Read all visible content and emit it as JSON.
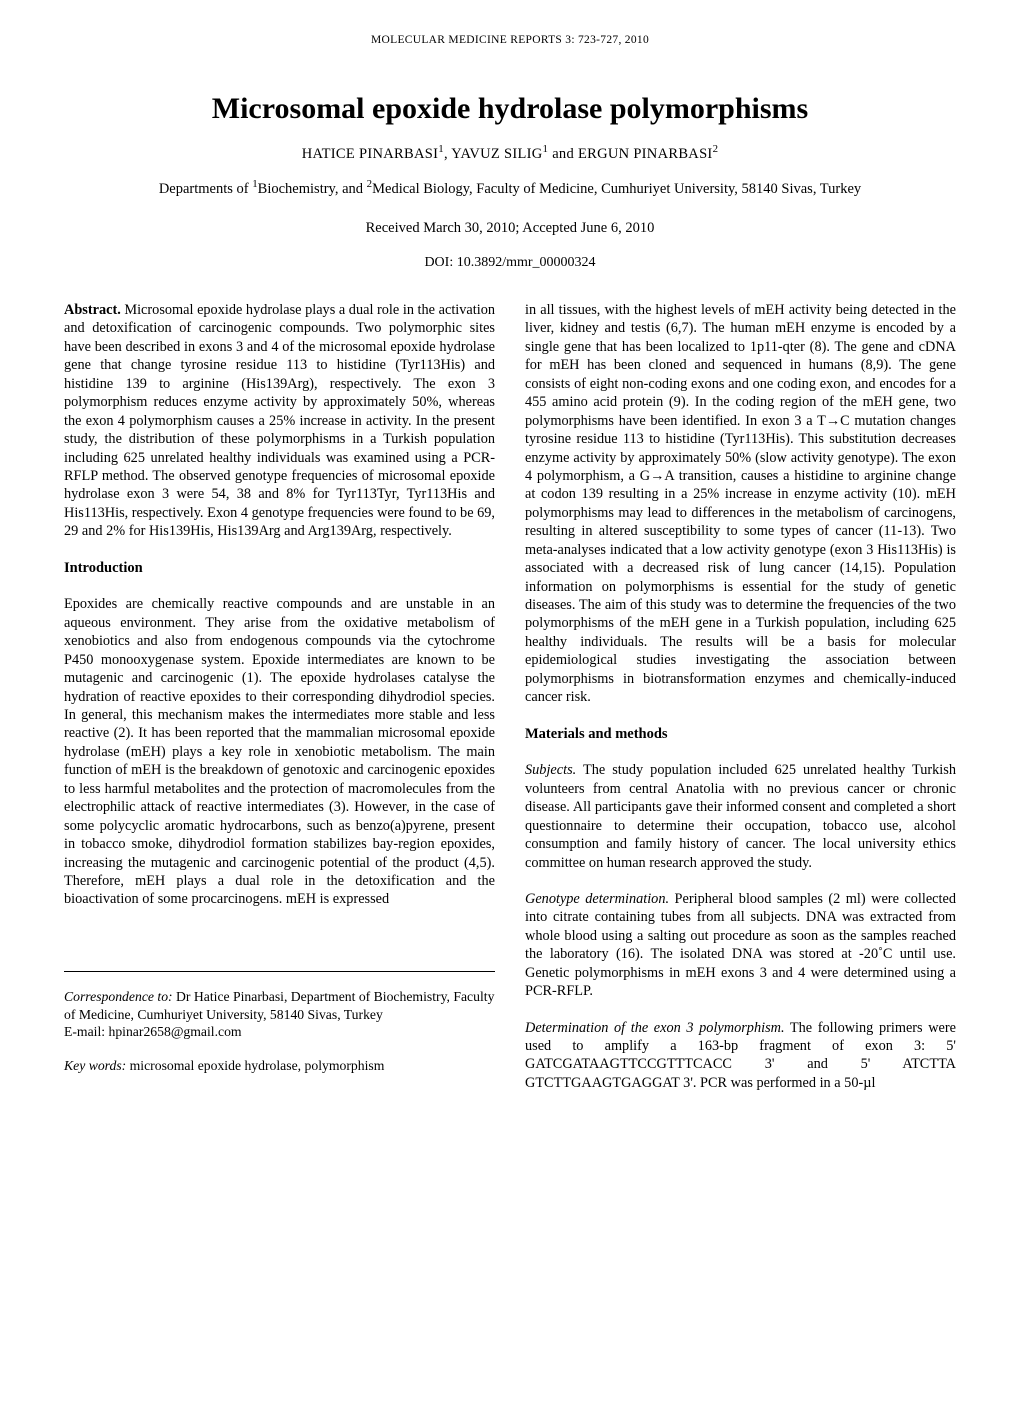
{
  "runningHeader": "MOLECULAR MEDICINE REPORTS  3:  723-727,  2010",
  "title": "Microsomal epoxide hydrolase polymorphisms",
  "authors_html": "HATICE PINARBASI<sup>1</sup>,  YAVUZ SILIG<sup>1</sup>  and  ERGUN PINARBASI<sup>2</sup>",
  "affiliation_html": "Departments of <sup>1</sup>Biochemistry, and <sup>2</sup>Medical Biology, Faculty of Medicine, Cumhuriyet University, 58140 Sivas, Turkey",
  "received": "Received March 30, 2010;  Accepted June 6, 2010",
  "doi": "DOI: 10.3892/mmr_00000324",
  "abstractLabel": "Abstract.",
  "abstractText": " Microsomal epoxide hydrolase plays a dual role in the activation and detoxification of carcinogenic compounds. Two polymorphic sites have been described in exons 3 and 4 of the microsomal epoxide hydrolase gene that change tyrosine residue 113 to histidine (Tyr113His) and histidine 139 to arginine (His139Arg), respectively. The exon 3 polymorphism reduces enzyme activity by approximately 50%, whereas the exon 4 polymorphism causes a 25% increase in activity. In the present study, the distribution of these polymorphisms in a Turkish population including 625 unrelated healthy individuals was examined using a PCR-RFLP method. The observed genotype frequencies of microsomal epoxide hydrolase exon 3 were 54, 38 and 8% for Tyr113Tyr, Tyr113His and His113His, respectively. Exon 4 genotype frequencies were found to be 69, 29 and 2% for His139His, His139Arg and Arg139Arg, respectively.",
  "introHeading": "Introduction",
  "introText": "Epoxides are chemically reactive compounds and are unstable in an aqueous environment. They arise from the oxidative metabolism of xenobiotics and also from endogenous compounds via the cytochrome P450 monooxygenase system. Epoxide intermediates are known to be mutagenic and carcinogenic (1). The epoxide hydrolases catalyse the hydration of reactive epoxides to their corresponding dihydrodiol species. In general, this mechanism makes the intermediates more stable and less reactive (2). It has been reported that the mammalian microsomal epoxide hydrolase (mEH) plays a key role in xenobiotic metabolism. The main function of mEH is the breakdown of genotoxic and carcinogenic epoxides to less harmful metabolites and the protection of macromolecules from the electrophilic attack of reactive intermediates (3). However, in the case of some polycyclic aromatic hydrocarbons, such as benzo(a)pyrene, present in tobacco smoke, dihydrodiol formation stabilizes bay-region epoxides, increasing the mutagenic and carcinogenic potential of the product (4,5). Therefore, mEH plays a dual role in the detoxification and the bioactivation of some procarcinogens. mEH is expressed",
  "rightTopText": "in all tissues, with the highest levels of mEH activity being detected in the liver, kidney and testis (6,7). The human mEH enzyme is encoded by a single gene that has been localized to 1p11-qter (8). The gene and cDNA for mEH has been cloned and sequenced in humans (8,9). The gene consists of eight non-coding exons and one coding exon, and encodes for a 455 amino acid protein (9). In the coding region of the mEH gene, two polymorphisms have been identified. In exon 3 a T→C mutation changes tyrosine residue 113 to histidine (Tyr113His). This substitution decreases enzyme activity by approximately 50% (slow activity genotype). The exon 4 polymorphism, a G→A transition, causes a histidine to arginine change at codon 139 resulting in a 25% increase in enzyme activity (10). mEH polymorphisms may lead to differences in the metabolism of carcinogens, resulting in altered susceptibility to some types of cancer (11-13). Two meta-analyses indicated that a low activity genotype (exon 3 His113His) is associated with a decreased risk of lung cancer (14,15). Population information on polymorphisms is essential for the study of genetic diseases. The aim of this study was to determine the frequencies of the two polymorphisms of the mEH gene in a Turkish population, including 625 healthy individuals. The results will be a basis for molecular epidemiological studies investigating the association between polymorphisms in biotransformation enzymes and chemically-induced cancer risk.",
  "materialsHeading": "Materials and methods",
  "subjectsLabel": "Subjects.",
  "subjectsText": " The study population included 625 unrelated healthy Turkish volunteers from central Anatolia with no previous cancer or chronic disease. All participants gave their informed consent and completed a short questionnaire to determine their occupation, tobacco use, alcohol consumption and family history of cancer. The local university ethics committee on human research approved the study.",
  "genotypeLabel": "Genotype determination.",
  "genotypeText": " Peripheral blood samples (2 ml) were collected into citrate containing tubes from all subjects. DNA was extracted from whole blood using a salting out procedure as soon as the samples reached the laboratory (16). The isolated DNA was stored at -20˚C until use. Genetic polymorphisms in mEH exons 3 and 4 were determined using a PCR-RFLP.",
  "exon3Label": "Determination of the exon 3 polymorphism.",
  "exon3Text": " The following primers were used to amplify a 163-bp fragment of exon 3: 5' GATCGATAAGTTCCGTTTCACC 3' and 5' ATCTTA GTCTTGAAGTGAGGAT 3'. PCR was performed in a 50-µl",
  "correspondenceLabel": "Correspondence to:",
  "correspondenceText": " Dr Hatice Pinarbasi, Department of Biochemistry, Faculty of Medicine, Cumhuriyet University, 58140 Sivas, Turkey",
  "emailLine": "E-mail: hpinar2658@gmail.com",
  "keywordsLabel": "Key words:",
  "keywordsText": " microsomal epoxide hydrolase, polymorphism"
}
